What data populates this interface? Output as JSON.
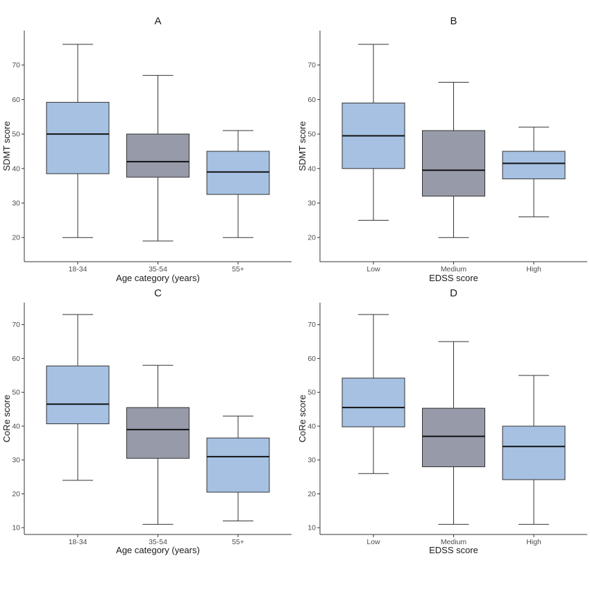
{
  "chart_data": [
    {
      "type": "box",
      "title": "A",
      "xlabel": "Age category (years)",
      "ylabel": "SDMT score",
      "categories": [
        "18-34",
        "35-54",
        "55+"
      ],
      "yticks": [
        20,
        30,
        40,
        50,
        60,
        70
      ],
      "ylim": [
        13,
        80
      ],
      "boxes": [
        {
          "min": 20,
          "q1": 38.5,
          "median": 50,
          "q3": 59.2,
          "max": 76,
          "color": "#a6c1e2"
        },
        {
          "min": 19,
          "q1": 37.5,
          "median": 42,
          "q3": 50,
          "max": 67,
          "color": "#979aa8"
        },
        {
          "min": 20,
          "q1": 32.5,
          "median": 39,
          "q3": 45,
          "max": 51,
          "color": "#a6c1e2"
        }
      ]
    },
    {
      "type": "box",
      "title": "B",
      "xlabel": "EDSS score",
      "ylabel": "SDMT score",
      "categories": [
        "Low",
        "Medium",
        "High"
      ],
      "yticks": [
        20,
        30,
        40,
        50,
        60,
        70
      ],
      "ylim": [
        13,
        80
      ],
      "boxes": [
        {
          "min": 25,
          "q1": 40,
          "median": 49.5,
          "q3": 59,
          "max": 76,
          "color": "#a6c1e2"
        },
        {
          "min": 20,
          "q1": 32,
          "median": 39.5,
          "q3": 51,
          "max": 65,
          "color": "#979aa8"
        },
        {
          "min": 26,
          "q1": 37,
          "median": 41.5,
          "q3": 45,
          "max": 52,
          "color": "#a6c1e2"
        }
      ]
    },
    {
      "type": "box",
      "title": "C",
      "xlabel": "Age category (years)",
      "ylabel": "CoRe score",
      "categories": [
        "18-34",
        "35-54",
        "55+"
      ],
      "yticks": [
        10,
        20,
        30,
        40,
        50,
        60,
        70
      ],
      "ylim": [
        8,
        76.5
      ],
      "boxes": [
        {
          "min": 24,
          "q1": 40.7,
          "median": 46.5,
          "q3": 57.8,
          "max": 73,
          "color": "#a6c1e2"
        },
        {
          "min": 11,
          "q1": 30.5,
          "median": 39,
          "q3": 45.5,
          "max": 58,
          "color": "#979aa8"
        },
        {
          "min": 12,
          "q1": 20.5,
          "median": 31,
          "q3": 36.5,
          "max": 43,
          "color": "#a6c1e2"
        }
      ]
    },
    {
      "type": "box",
      "title": "D",
      "xlabel": "EDSS score",
      "ylabel": "CoRe score",
      "categories": [
        "Low",
        "Medium",
        "High"
      ],
      "yticks": [
        10,
        20,
        30,
        40,
        50,
        60,
        70
      ],
      "ylim": [
        8,
        76.5
      ],
      "boxes": [
        {
          "min": 26,
          "q1": 39.8,
          "median": 45.5,
          "q3": 54.2,
          "max": 73,
          "color": "#a6c1e2"
        },
        {
          "min": 11,
          "q1": 28,
          "median": 37,
          "q3": 45.3,
          "max": 65,
          "color": "#979aa8"
        },
        {
          "min": 11,
          "q1": 24.2,
          "median": 34,
          "q3": 40,
          "max": 55,
          "color": "#a6c1e2"
        }
      ]
    }
  ]
}
